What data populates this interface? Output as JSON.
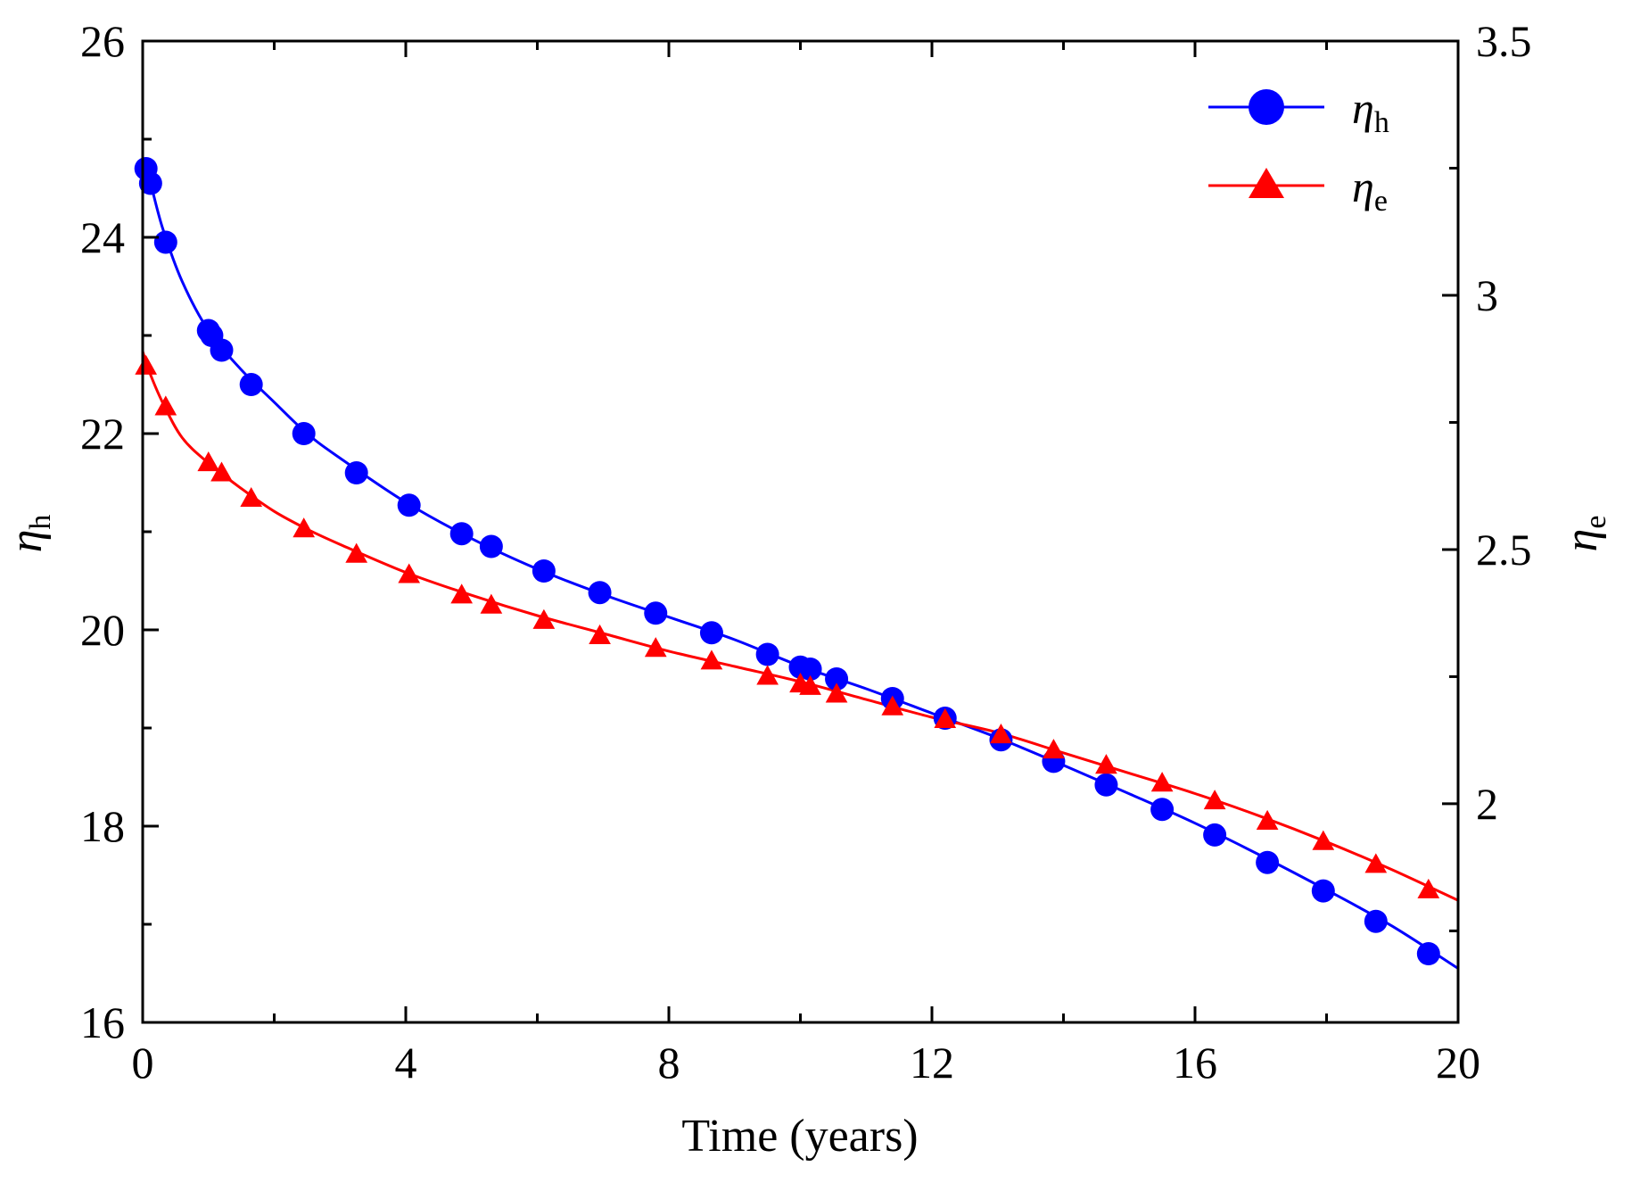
{
  "chart_data": {
    "type": "line",
    "xlabel": "Time (years)",
    "xlim": [
      0,
      20
    ],
    "xticks": [
      0,
      4,
      8,
      12,
      16,
      20
    ],
    "y_left": {
      "label_base": "η",
      "label_sub": "h",
      "lim": [
        16,
        26
      ],
      "ticks": [
        16,
        18,
        20,
        22,
        24,
        26
      ]
    },
    "y_right": {
      "label_base": "η",
      "label_sub": "e",
      "lim": [
        1.57,
        3.5
      ],
      "ticks": [
        2,
        2.5,
        3,
        3.5
      ]
    },
    "legend_position": "top-right",
    "series": [
      {
        "name": "η_h",
        "label_base": "η",
        "label_sub": "h",
        "axis": "left",
        "color": "#0000ff",
        "marker": "circle",
        "x": [
          0.05,
          0.12,
          0.35,
          1.0,
          1.05,
          1.2,
          1.65,
          2.45,
          3.25,
          4.05,
          4.85,
          5.3,
          6.1,
          6.95,
          7.8,
          8.65,
          9.5,
          10.0,
          10.15,
          10.55,
          11.4,
          12.2,
          13.05,
          13.85,
          14.65,
          15.5,
          16.3,
          17.1,
          17.95,
          18.75,
          19.55
        ],
        "y": [
          24.7,
          24.55,
          23.95,
          23.05,
          23.0,
          22.85,
          22.5,
          22.0,
          21.6,
          21.27,
          20.98,
          20.85,
          20.6,
          20.38,
          20.17,
          19.97,
          19.75,
          19.62,
          19.6,
          19.5,
          19.3,
          19.1,
          18.88,
          18.66,
          18.42,
          18.17,
          17.91,
          17.63,
          17.34,
          17.03,
          16.7
        ],
        "curve_x": [
          0,
          0.1,
          0.3,
          0.6,
          1.0,
          1.5,
          2.0,
          2.5,
          3.0,
          4.0,
          5.0,
          6.0,
          7.0,
          8.0,
          9.0,
          10.0,
          11.0,
          12.0,
          13.0,
          14.0,
          15.0,
          16.0,
          17.0,
          18.0,
          19.0,
          20.0
        ],
        "curve_y": [
          24.78,
          24.6,
          24.1,
          23.55,
          23.05,
          22.65,
          22.32,
          22.0,
          21.75,
          21.3,
          20.93,
          20.62,
          20.36,
          20.13,
          19.9,
          19.63,
          19.4,
          19.15,
          18.9,
          18.62,
          18.33,
          18.03,
          17.7,
          17.35,
          16.98,
          16.55
        ]
      },
      {
        "name": "η_e",
        "label_base": "η",
        "label_sub": "e",
        "axis": "right",
        "color": "#ff0000",
        "marker": "triangle",
        "x": [
          0.05,
          0.35,
          1.0,
          1.2,
          1.65,
          2.45,
          3.25,
          4.05,
          4.85,
          5.3,
          6.1,
          6.95,
          7.8,
          8.65,
          9.5,
          10.0,
          10.15,
          10.55,
          11.4,
          12.2,
          13.05,
          13.85,
          14.65,
          15.5,
          16.3,
          17.1,
          17.95,
          18.75,
          19.55
        ],
        "y": [
          2.86,
          2.78,
          2.67,
          2.65,
          2.6,
          2.54,
          2.49,
          2.45,
          2.41,
          2.39,
          2.36,
          2.33,
          2.305,
          2.28,
          2.25,
          2.235,
          2.23,
          2.215,
          2.19,
          2.165,
          2.135,
          2.105,
          2.075,
          2.04,
          2.005,
          1.965,
          1.925,
          1.88,
          1.83
        ],
        "curve_x": [
          0,
          0.1,
          0.3,
          0.6,
          1.0,
          1.5,
          2.0,
          2.5,
          3.0,
          4.0,
          5.0,
          6.0,
          7.0,
          8.0,
          9.0,
          10.0,
          11.0,
          12.0,
          13.0,
          14.0,
          15.0,
          16.0,
          17.0,
          18.0,
          19.0,
          20.0
        ],
        "curve_y": [
          2.89,
          2.85,
          2.79,
          2.72,
          2.67,
          2.62,
          2.575,
          2.54,
          2.51,
          2.455,
          2.41,
          2.37,
          2.335,
          2.3,
          2.27,
          2.24,
          2.205,
          2.17,
          2.14,
          2.1,
          2.06,
          2.02,
          1.975,
          1.925,
          1.87,
          1.81
        ]
      }
    ]
  }
}
